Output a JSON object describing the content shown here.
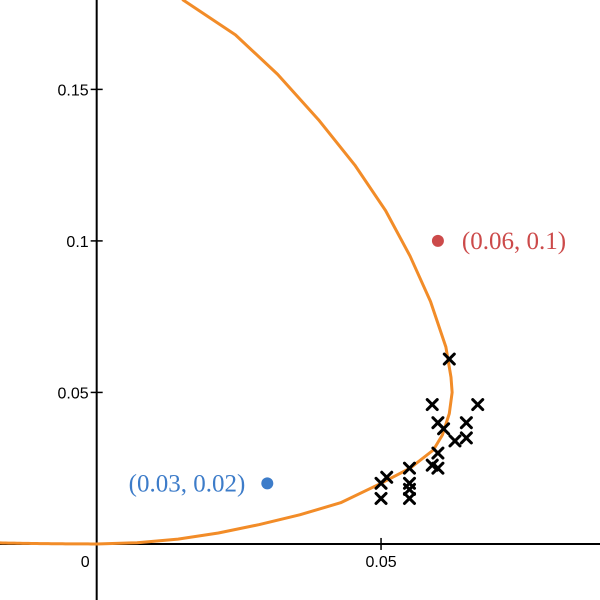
{
  "chart_data": {
    "type": "scatter",
    "title": "",
    "xlabel": "",
    "ylabel": "",
    "xlim": [
      -0.017,
      0.0885
    ],
    "ylim": [
      -0.0185,
      0.1795
    ],
    "grid": false,
    "x_ticks": [
      {
        "value": 0,
        "label": "0"
      },
      {
        "value": 0.05,
        "label": "0.05"
      }
    ],
    "y_ticks": [
      {
        "value": 0.05,
        "label": "0.05"
      },
      {
        "value": 0.1,
        "label": "0.1"
      },
      {
        "value": 0.15,
        "label": "0.15"
      }
    ],
    "colors": {
      "curve": "#f28c28",
      "crosses": "#000000",
      "point_blue": "#3d7cc9",
      "point_red": "#cc4a4a",
      "axes": "#000000"
    },
    "curve": {
      "name": "",
      "type": "parabola",
      "vertex": [
        0,
        0
      ],
      "passes_through": [
        0.05,
        0.02
      ],
      "x": [
        0.0,
        0.0071,
        0.0143,
        0.0214,
        0.0286,
        0.0357,
        0.0429,
        0.05,
        0.0551,
        0.0592,
        0.0608,
        0.062,
        0.0625,
        0.0623,
        0.0614,
        0.0587,
        0.0551,
        0.0508,
        0.0454,
        0.039,
        0.0318,
        0.0244,
        0.0152
      ],
      "y": [
        0.0,
        0.0004,
        0.0016,
        0.0036,
        0.0064,
        0.0096,
        0.0136,
        0.02,
        0.025,
        0.031,
        0.036,
        0.043,
        0.05,
        0.055,
        0.065,
        0.08,
        0.095,
        0.11,
        0.125,
        0.14,
        0.155,
        0.168,
        0.1795
      ]
    },
    "series": [
      {
        "name": "",
        "marker": "x",
        "x": [
          0.05,
          0.051,
          0.05,
          0.055,
          0.055,
          0.055,
          0.055,
          0.059,
          0.06,
          0.06,
          0.059,
          0.06,
          0.061,
          0.063,
          0.065,
          0.065,
          0.067,
          0.062
        ],
        "y": [
          0.015,
          0.022,
          0.02,
          0.025,
          0.02,
          0.018,
          0.015,
          0.026,
          0.025,
          0.03,
          0.046,
          0.04,
          0.038,
          0.034,
          0.035,
          0.04,
          0.046,
          0.061
        ]
      }
    ],
    "points": [
      {
        "x": 0.03,
        "y": 0.02,
        "label": "(0.03, 0.02)",
        "color": "#3d7cc9",
        "label_side": "left"
      },
      {
        "x": 0.06,
        "y": 0.1,
        "label": "(0.06, 0.1)",
        "color": "#cc4a4a",
        "label_side": "right"
      }
    ]
  }
}
